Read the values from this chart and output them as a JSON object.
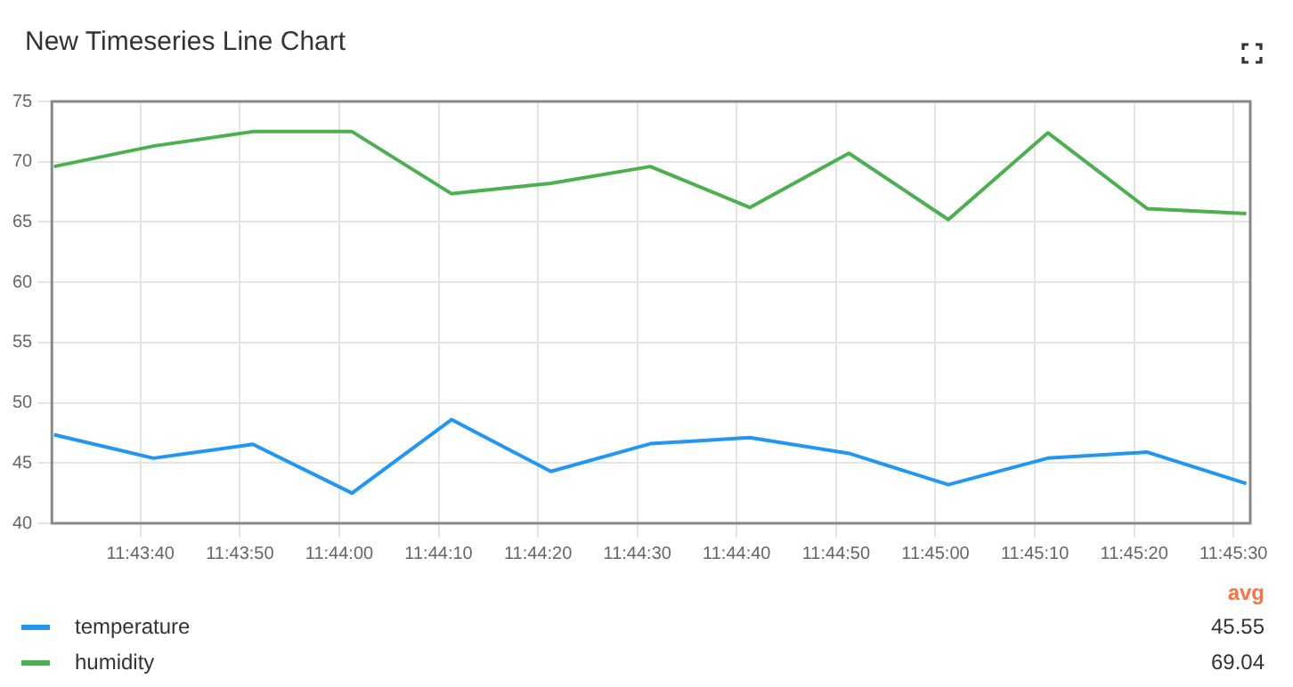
{
  "chart_data": {
    "type": "line",
    "title": "New Timeseries Line Chart",
    "x": [
      11.72536,
      11.72814,
      11.73092,
      11.73369,
      11.73647,
      11.73925,
      11.74203,
      11.74481,
      11.74758,
      11.75036,
      11.75314,
      11.75592,
      11.75869
    ],
    "series": [
      {
        "name": "temperature",
        "color": "#2196f3",
        "values": [
          47.35,
          45.4,
          46.55,
          42.5,
          48.6,
          44.3,
          46.6,
          47.1,
          45.8,
          43.2,
          45.4,
          45.9,
          43.3
        ]
      },
      {
        "name": "humidity",
        "color": "#4caf50",
        "values": [
          69.6,
          71.3,
          72.5,
          72.5,
          67.35,
          68.2,
          69.6,
          66.2,
          70.7,
          65.2,
          72.4,
          66.1,
          65.7
        ]
      }
    ],
    "xlim": [
      11.7253,
      11.7588
    ],
    "xticks": [
      {
        "value": 11.727778,
        "label": "11:43:40"
      },
      {
        "value": 11.730556,
        "label": "11:43:50"
      },
      {
        "value": 11.733333,
        "label": "11:44:00"
      },
      {
        "value": 11.736111,
        "label": "11:44:10"
      },
      {
        "value": 11.738889,
        "label": "11:44:20"
      },
      {
        "value": 11.741667,
        "label": "11:44:30"
      },
      {
        "value": 11.744444,
        "label": "11:44:40"
      },
      {
        "value": 11.747222,
        "label": "11:44:50"
      },
      {
        "value": 11.75,
        "label": "11:45:00"
      },
      {
        "value": 11.752778,
        "label": "11:45:10"
      },
      {
        "value": 11.755556,
        "label": "11:45:20"
      },
      {
        "value": 11.758333,
        "label": "11:45:30"
      }
    ],
    "ylim": [
      40,
      75
    ],
    "yticks": [
      40,
      45,
      50,
      55,
      60,
      65,
      70,
      75
    ],
    "grid": true,
    "legend": "bottom",
    "marker": "none",
    "line_style": "solid",
    "annotations": [
      "avg",
      "45.55",
      "69.04"
    ]
  }
}
